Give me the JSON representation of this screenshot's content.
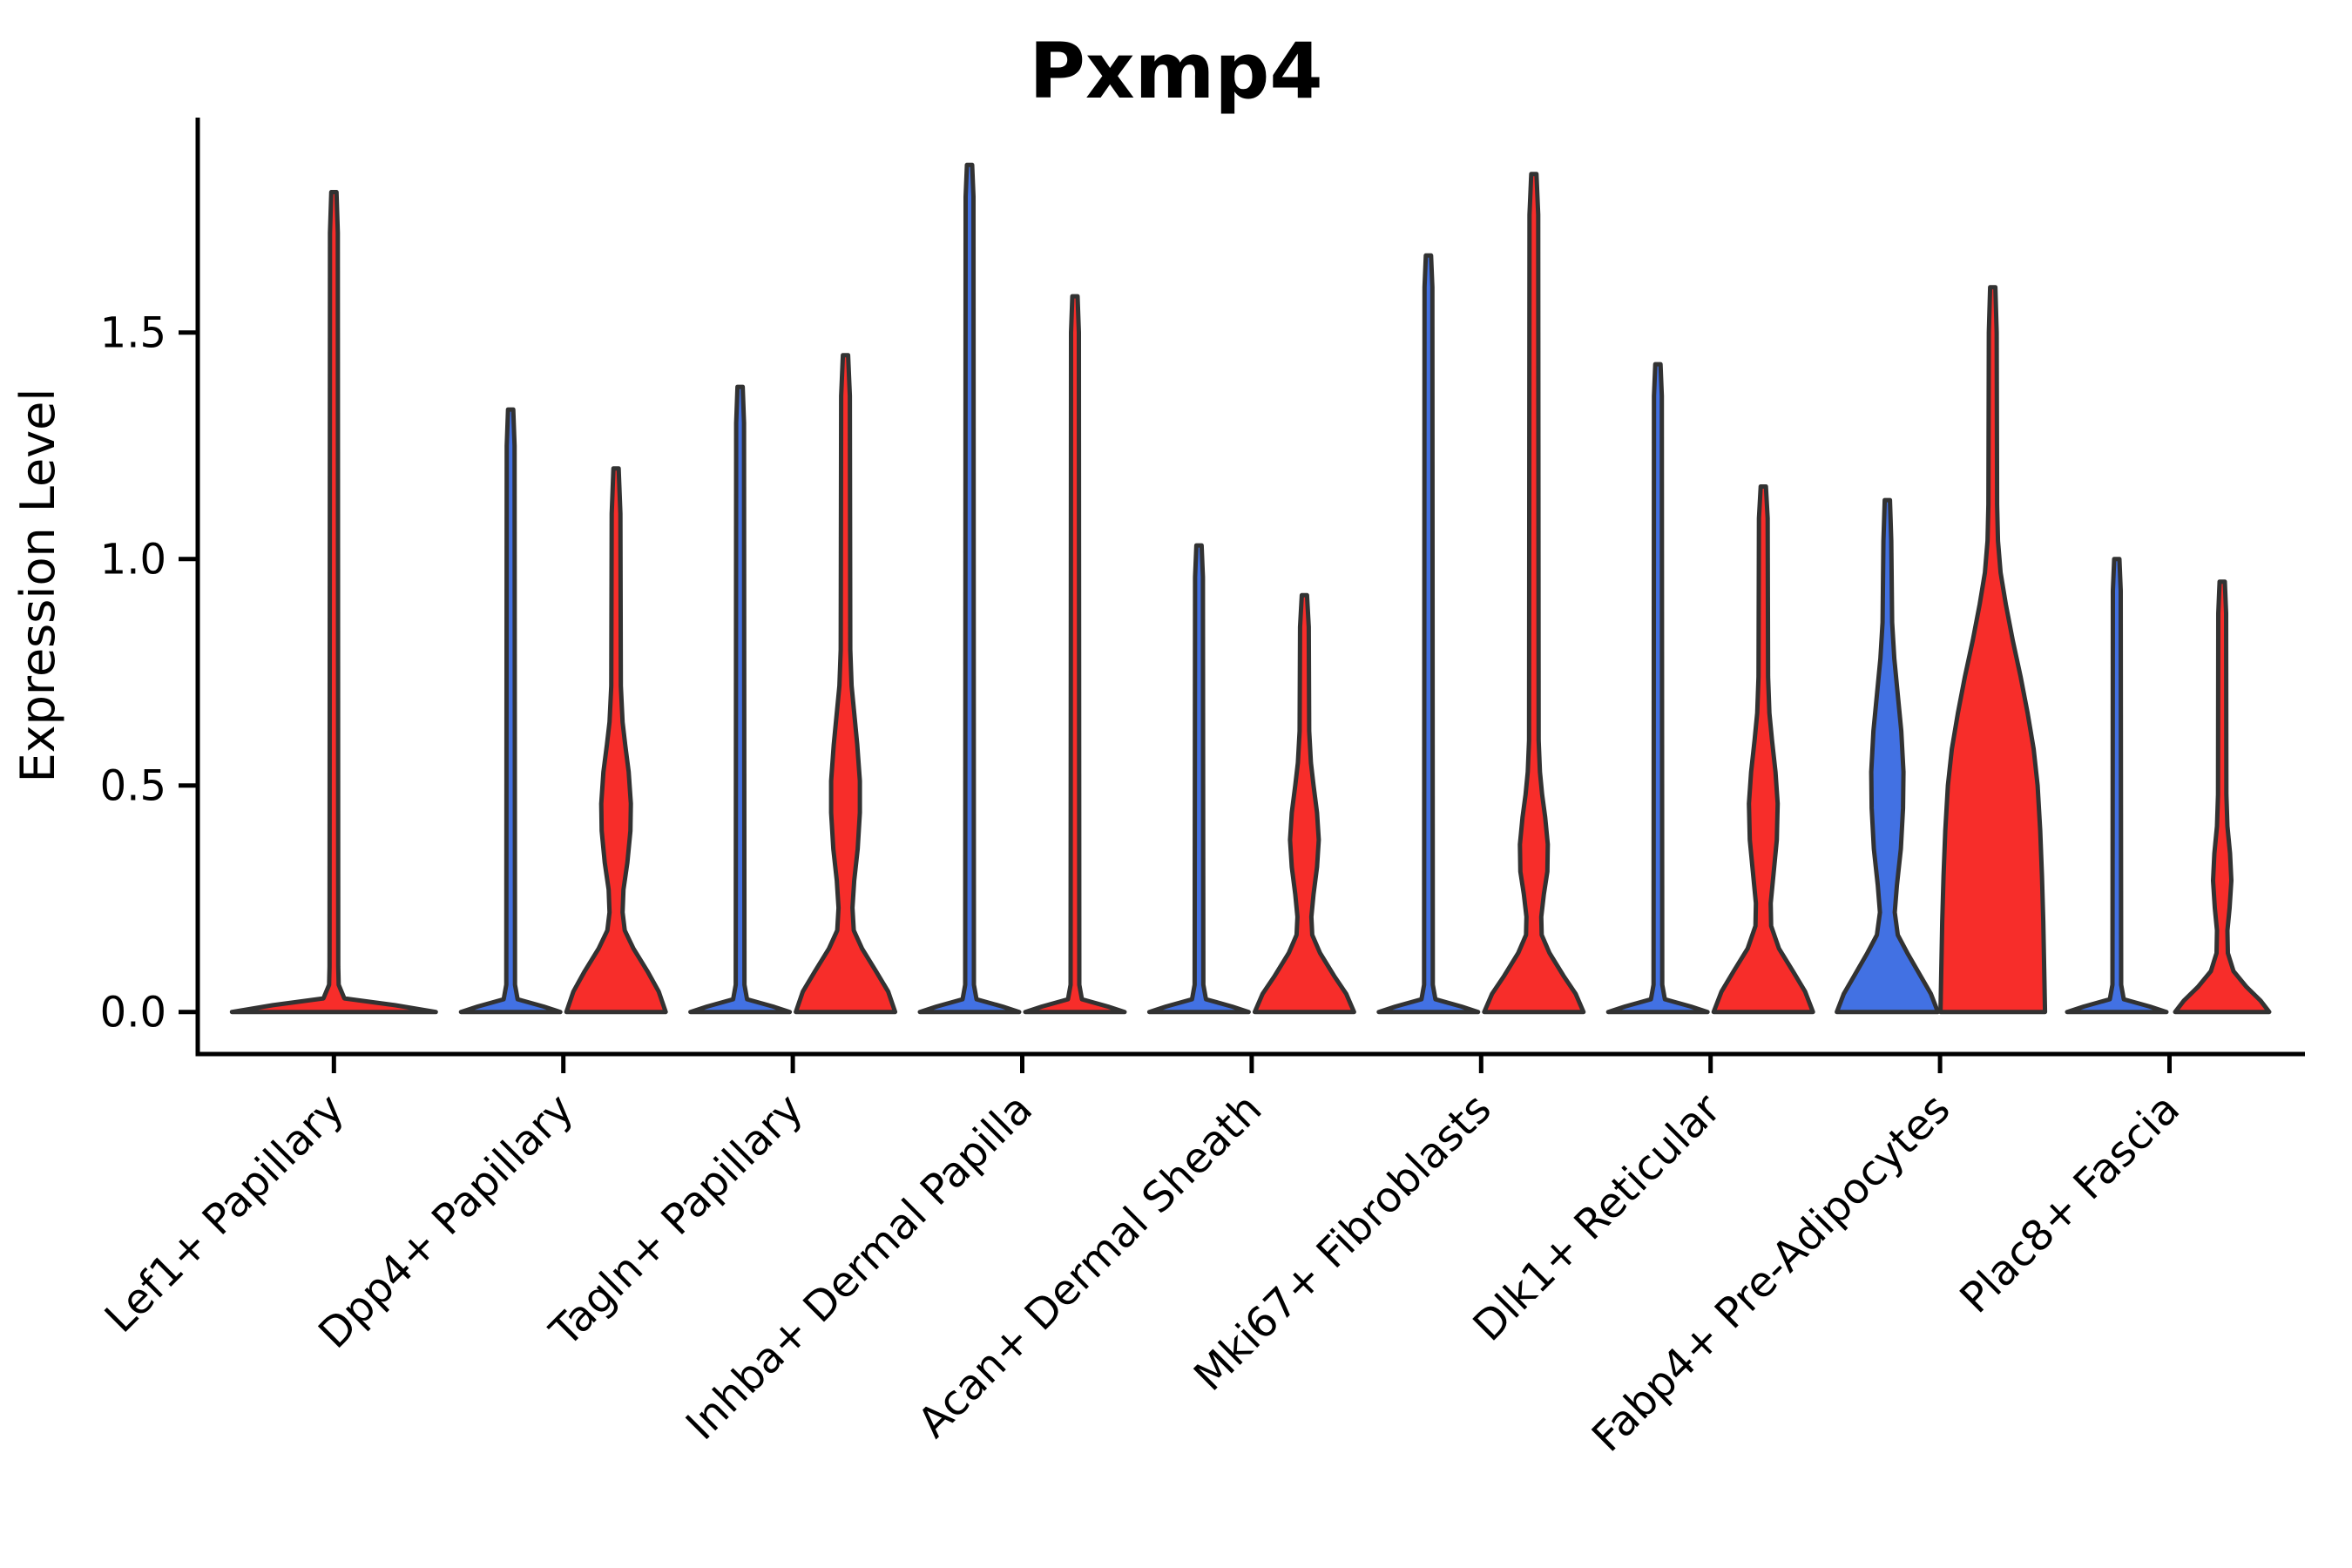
{
  "chart_data": {
    "type": "violin",
    "title": "Pxmp4",
    "ylabel": "Expression Level",
    "xlabel": "",
    "ylim": [
      -0.09,
      1.98
    ],
    "grid": false,
    "legend": "none",
    "yticks": {
      "values": [
        0.0,
        0.5,
        1.0,
        1.5
      ],
      "labels": [
        "0.0",
        "0.5",
        "1.0",
        "1.5"
      ]
    },
    "colors": {
      "left_series": "#4271e3",
      "right_series": "#f72d2a",
      "edge": "#323232",
      "axis": "#000000"
    },
    "categories": [
      "Lef1+ Papillary",
      "Dpp4+ Papillary",
      "Tagln+ Papillary",
      "Inhba+ Dermal Papilla",
      "Acan+ Dermal Sheath",
      "Mki67+ Fibroblasts",
      "Dlk1+ Reticular",
      "Fabp4+ Pre-Adipocytes",
      "Plac8+ Fascia"
    ],
    "groups": [
      {
        "category": "Lef1+ Papillary",
        "violins": [
          {
            "pos": 0,
            "color": "#f72d2a",
            "peak": 1.81,
            "shape": [
              [
                0,
                117
              ],
              [
                0.015,
                70
              ],
              [
                0.03,
                12
              ],
              [
                0.06,
                5.5
              ],
              [
                0.1,
                5
              ],
              [
                1.72,
                4.5
              ],
              [
                1.81,
                3
              ]
            ]
          }
        ]
      },
      {
        "category": "Dpp4+ Papillary",
        "violins": [
          {
            "pos": -1,
            "color": "#4271e3",
            "peak": 1.33,
            "shape": [
              [
                0,
                57
              ],
              [
                0.012,
                38
              ],
              [
                0.028,
                8
              ],
              [
                0.06,
                5
              ],
              [
                1.25,
                4.5
              ],
              [
                1.33,
                3
              ]
            ]
          },
          {
            "pos": 1,
            "color": "#f72d2a",
            "peak": 1.2,
            "shape": [
              [
                0,
                57
              ],
              [
                0.045,
                49
              ],
              [
                0.09,
                36
              ],
              [
                0.14,
                20
              ],
              [
                0.18,
                10
              ],
              [
                0.22,
                7.5
              ],
              [
                0.27,
                8.5
              ],
              [
                0.33,
                13
              ],
              [
                0.4,
                16.5
              ],
              [
                0.46,
                17
              ],
              [
                0.53,
                14.5
              ],
              [
                0.59,
                10.5
              ],
              [
                0.64,
                7.5
              ],
              [
                0.72,
                5.5
              ],
              [
                1.1,
                5
              ],
              [
                1.2,
                3
              ]
            ]
          }
        ]
      },
      {
        "category": "Tagln+ Papillary",
        "violins": [
          {
            "pos": -1,
            "color": "#4271e3",
            "peak": 1.38,
            "shape": [
              [
                0,
                57
              ],
              [
                0.012,
                38
              ],
              [
                0.028,
                8
              ],
              [
                0.06,
                5
              ],
              [
                1.3,
                4.5
              ],
              [
                1.38,
                3
              ]
            ]
          },
          {
            "pos": 1,
            "color": "#f72d2a",
            "peak": 1.45,
            "shape": [
              [
                0,
                57
              ],
              [
                0.045,
                49
              ],
              [
                0.09,
                35
              ],
              [
                0.14,
                19
              ],
              [
                0.18,
                9.5
              ],
              [
                0.23,
                8
              ],
              [
                0.29,
                10
              ],
              [
                0.36,
                14
              ],
              [
                0.44,
                16.5
              ],
              [
                0.51,
                16.5
              ],
              [
                0.59,
                13.5
              ],
              [
                0.66,
                10
              ],
              [
                0.72,
                7
              ],
              [
                0.8,
                5.5
              ],
              [
                1.36,
                5
              ],
              [
                1.45,
                3
              ]
            ]
          }
        ]
      },
      {
        "category": "Inhba+ Dermal Papilla",
        "violins": [
          {
            "pos": -1,
            "color": "#4271e3",
            "peak": 1.87,
            "shape": [
              [
                0,
                57
              ],
              [
                0.012,
                38
              ],
              [
                0.028,
                8
              ],
              [
                0.06,
                5
              ],
              [
                1.8,
                4.5
              ],
              [
                1.87,
                3
              ]
            ]
          },
          {
            "pos": 1,
            "color": "#f72d2a",
            "peak": 1.58,
            "shape": [
              [
                0,
                57
              ],
              [
                0.012,
                38
              ],
              [
                0.028,
                8
              ],
              [
                0.06,
                5
              ],
              [
                1.5,
                4.5
              ],
              [
                1.58,
                3
              ]
            ]
          }
        ]
      },
      {
        "category": "Acan+ Dermal Sheath",
        "violins": [
          {
            "pos": -1,
            "color": "#4271e3",
            "peak": 1.03,
            "shape": [
              [
                0,
                57
              ],
              [
                0.012,
                38
              ],
              [
                0.028,
                8
              ],
              [
                0.06,
                5
              ],
              [
                0.96,
                4.5
              ],
              [
                1.03,
                3
              ]
            ]
          },
          {
            "pos": 1,
            "color": "#f72d2a",
            "peak": 0.92,
            "shape": [
              [
                0,
                57
              ],
              [
                0.04,
                48
              ],
              [
                0.08,
                34
              ],
              [
                0.13,
                18
              ],
              [
                0.17,
                9
              ],
              [
                0.21,
                8
              ],
              [
                0.26,
                10.5
              ],
              [
                0.32,
                14.5
              ],
              [
                0.38,
                16.5
              ],
              [
                0.44,
                14.5
              ],
              [
                0.5,
                10.5
              ],
              [
                0.55,
                7.5
              ],
              [
                0.62,
                5.5
              ],
              [
                0.85,
                5
              ],
              [
                0.92,
                3
              ]
            ]
          }
        ]
      },
      {
        "category": "Mki67+ Fibroblasts",
        "violins": [
          {
            "pos": -1,
            "color": "#4271e3",
            "peak": 1.67,
            "shape": [
              [
                0,
                57
              ],
              [
                0.012,
                38
              ],
              [
                0.028,
                8
              ],
              [
                0.06,
                5
              ],
              [
                1.6,
                4.5
              ],
              [
                1.67,
                3
              ]
            ]
          },
          {
            "pos": 1,
            "color": "#f72d2a",
            "peak": 1.85,
            "shape": [
              [
                0,
                57
              ],
              [
                0.04,
                48
              ],
              [
                0.08,
                34
              ],
              [
                0.13,
                18
              ],
              [
                0.17,
                9
              ],
              [
                0.21,
                8.5
              ],
              [
                0.26,
                11.5
              ],
              [
                0.31,
                15.5
              ],
              [
                0.37,
                16
              ],
              [
                0.43,
                13
              ],
              [
                0.48,
                9.5
              ],
              [
                0.53,
                7
              ],
              [
                0.6,
                5.5
              ],
              [
                1.76,
                5
              ],
              [
                1.85,
                3
              ]
            ]
          }
        ]
      },
      {
        "category": "Dlk1+ Reticular",
        "violins": [
          {
            "pos": -1,
            "color": "#4271e3",
            "peak": 1.43,
            "shape": [
              [
                0,
                57
              ],
              [
                0.012,
                38
              ],
              [
                0.028,
                8
              ],
              [
                0.06,
                5
              ],
              [
                1.36,
                4.5
              ],
              [
                1.43,
                3
              ]
            ]
          },
          {
            "pos": 1,
            "color": "#f72d2a",
            "peak": 1.16,
            "shape": [
              [
                0,
                57
              ],
              [
                0.045,
                48
              ],
              [
                0.09,
                34
              ],
              [
                0.14,
                18
              ],
              [
                0.19,
                9
              ],
              [
                0.24,
                8.5
              ],
              [
                0.3,
                11.5
              ],
              [
                0.38,
                15.5
              ],
              [
                0.46,
                16.5
              ],
              [
                0.53,
                14
              ],
              [
                0.6,
                10
              ],
              [
                0.66,
                7
              ],
              [
                0.74,
                5.5
              ],
              [
                1.09,
                5
              ],
              [
                1.16,
                3
              ]
            ]
          }
        ]
      },
      {
        "category": "Fabp4+ Pre-Adipocytes",
        "violins": [
          {
            "pos": -1,
            "color": "#4271e3",
            "peak": 1.13,
            "shape": [
              [
                0,
                58
              ],
              [
                0.04,
                50
              ],
              [
                0.08,
                38
              ],
              [
                0.13,
                23
              ],
              [
                0.17,
                12
              ],
              [
                0.22,
                8.5
              ],
              [
                0.28,
                11
              ],
              [
                0.36,
                15.5
              ],
              [
                0.45,
                18
              ],
              [
                0.53,
                18.5
              ],
              [
                0.62,
                16
              ],
              [
                0.7,
                12
              ],
              [
                0.78,
                8
              ],
              [
                0.86,
                5.5
              ],
              [
                1.04,
                4.5
              ],
              [
                1.13,
                3
              ]
            ]
          },
          {
            "pos": 1,
            "color": "#f72d2a",
            "peak": 1.6,
            "shape": [
              [
                0,
                60
              ],
              [
                0.1,
                59
              ],
              [
                0.2,
                58
              ],
              [
                0.3,
                56.5
              ],
              [
                0.4,
                54.5
              ],
              [
                0.5,
                51.5
              ],
              [
                0.58,
                47
              ],
              [
                0.66,
                40
              ],
              [
                0.74,
                32
              ],
              [
                0.82,
                23
              ],
              [
                0.9,
                15
              ],
              [
                0.97,
                9
              ],
              [
                1.04,
                6
              ],
              [
                1.12,
                5
              ],
              [
                1.5,
                4.5
              ],
              [
                1.6,
                3
              ]
            ]
          }
        ]
      },
      {
        "category": "Plac8+ Fascia",
        "violins": [
          {
            "pos": -1,
            "color": "#4271e3",
            "peak": 1.0,
            "shape": [
              [
                0,
                57
              ],
              [
                0.012,
                38
              ],
              [
                0.028,
                8
              ],
              [
                0.06,
                5
              ],
              [
                0.93,
                4.5
              ],
              [
                1.0,
                3
              ]
            ]
          },
          {
            "pos": 1,
            "color": "#f72d2a",
            "peak": 0.95,
            "shape": [
              [
                0,
                54
              ],
              [
                0.025,
                44
              ],
              [
                0.055,
                28
              ],
              [
                0.09,
                13
              ],
              [
                0.13,
                6.5
              ],
              [
                0.18,
                6
              ],
              [
                0.23,
                8.5
              ],
              [
                0.29,
                10.5
              ],
              [
                0.35,
                9
              ],
              [
                0.41,
                6
              ],
              [
                0.48,
                4.8
              ],
              [
                0.88,
                4.5
              ],
              [
                0.95,
                3
              ]
            ]
          }
        ]
      }
    ]
  }
}
